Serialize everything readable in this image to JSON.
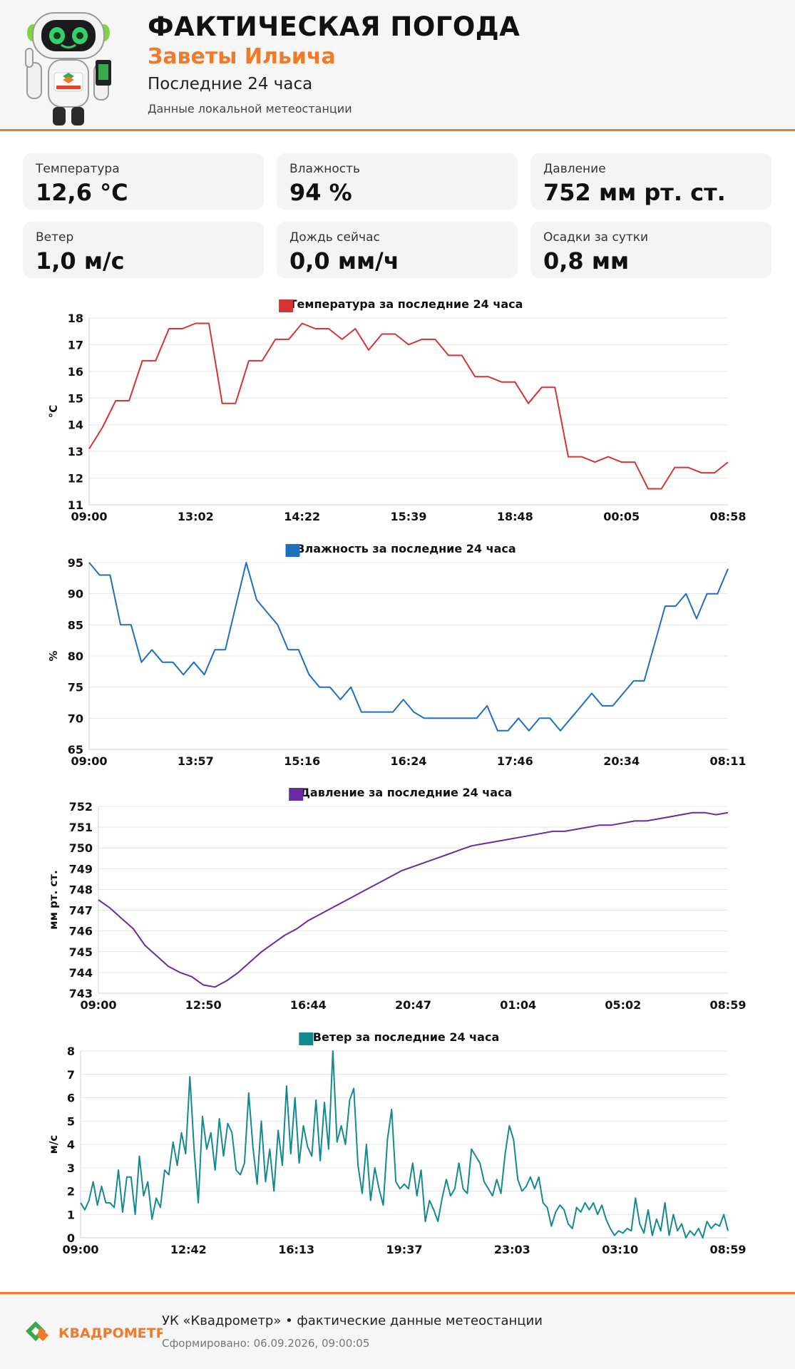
{
  "header": {
    "title": "ФАКТИЧЕСКАЯ ПОГОДА",
    "location": "Заветы Ильича",
    "period": "Последние 24 часа",
    "source": "Данные локальной метеостанции",
    "accent_color": "#f07a2a"
  },
  "cards": [
    {
      "label": "Температура",
      "value": "12,6 °C"
    },
    {
      "label": "Влажность",
      "value": "94 %"
    },
    {
      "label": "Давление",
      "value": "752 мм рт. ст."
    },
    {
      "label": "Ветер",
      "value": "1,0 м/с"
    },
    {
      "label": "Дождь сейчас",
      "value": "0,0 мм/ч"
    },
    {
      "label": "Осадки за сутки",
      "value": "0,8 мм"
    }
  ],
  "chart_data": [
    {
      "type": "line",
      "title": "Температура за последние 24 часа",
      "ylabel": "°C",
      "color": "#d63333",
      "ylim": [
        11,
        18
      ],
      "yticks": [
        11,
        12,
        13,
        14,
        15,
        16,
        17,
        18
      ],
      "xtick_labels": [
        "09:00",
        "13:02",
        "14:22",
        "15:39",
        "18:48",
        "00:05",
        "08:58"
      ],
      "grid": true,
      "legend": "top-center",
      "values": [
        13.1,
        13.9,
        14.9,
        14.9,
        16.4,
        16.4,
        17.6,
        17.6,
        17.8,
        17.8,
        14.8,
        14.8,
        16.4,
        16.4,
        17.2,
        17.2,
        17.8,
        17.6,
        17.6,
        17.2,
        17.6,
        16.8,
        17.4,
        17.4,
        17.0,
        17.2,
        17.2,
        16.6,
        16.6,
        15.8,
        15.8,
        15.6,
        15.6,
        14.8,
        15.4,
        15.4,
        12.8,
        12.8,
        12.6,
        12.8,
        12.6,
        12.6,
        11.6,
        11.6,
        12.4,
        12.4,
        12.2,
        12.2,
        12.6
      ]
    },
    {
      "type": "line",
      "title": "Влажность за последние 24 часа",
      "ylabel": "%",
      "color": "#1f6fbf",
      "ylim": [
        65,
        95
      ],
      "yticks": [
        65,
        70,
        75,
        80,
        85,
        90,
        95
      ],
      "xtick_labels": [
        "09:00",
        "13:57",
        "15:16",
        "16:24",
        "17:46",
        "20:34",
        "08:11"
      ],
      "grid": true,
      "legend": "top-center",
      "values": [
        95,
        93,
        93,
        85,
        85,
        79,
        81,
        79,
        79,
        77,
        79,
        77,
        81,
        81,
        88,
        95,
        89,
        87,
        85,
        81,
        81,
        77,
        75,
        75,
        73,
        75,
        71,
        71,
        71,
        71,
        73,
        71,
        70,
        70,
        70,
        70,
        70,
        70,
        72,
        68,
        68,
        70,
        68,
        70,
        70,
        68,
        70,
        72,
        74,
        72,
        72,
        74,
        76,
        76,
        82,
        88,
        88,
        90,
        86,
        90,
        90,
        94
      ]
    },
    {
      "type": "line",
      "title": "Давление за последние 24 часа",
      "ylabel": "мм рт. ст.",
      "color": "#6a2aa0",
      "ylim": [
        743,
        752
      ],
      "yticks": [
        743,
        744,
        745,
        746,
        747,
        748,
        749,
        750,
        751,
        752
      ],
      "xtick_labels": [
        "09:00",
        "12:50",
        "16:44",
        "20:47",
        "01:04",
        "05:02",
        "08:59"
      ],
      "grid": true,
      "legend": "top-center",
      "values": [
        747.5,
        747.1,
        746.6,
        746.1,
        745.3,
        744.8,
        744.3,
        744.0,
        743.8,
        743.4,
        743.3,
        743.6,
        744.0,
        744.5,
        745.0,
        745.4,
        745.8,
        746.1,
        746.5,
        746.8,
        747.1,
        747.4,
        747.7,
        748.0,
        748.3,
        748.6,
        748.9,
        749.1,
        749.3,
        749.5,
        749.7,
        749.9,
        750.1,
        750.2,
        750.3,
        750.4,
        750.5,
        750.6,
        750.7,
        750.8,
        750.8,
        750.9,
        751.0,
        751.1,
        751.1,
        751.2,
        751.3,
        751.3,
        751.4,
        751.5,
        751.6,
        751.7,
        751.7,
        751.6,
        751.7
      ]
    },
    {
      "type": "line",
      "title": "Ветер за последние 24 часа",
      "ylabel": "м/с",
      "color": "#138a8f",
      "ylim": [
        0,
        8
      ],
      "yticks": [
        0,
        1,
        2,
        3,
        4,
        5,
        6,
        7,
        8
      ],
      "xtick_labels": [
        "09:00",
        "12:42",
        "16:13",
        "19:37",
        "23:03",
        "03:10",
        "08:59"
      ],
      "grid": true,
      "legend": "top-center",
      "values": [
        1.5,
        1.2,
        1.6,
        2.4,
        1.4,
        2.2,
        1.5,
        1.5,
        1.3,
        2.9,
        1.1,
        2.6,
        2.6,
        1.0,
        3.5,
        1.8,
        2.4,
        0.8,
        1.7,
        1.3,
        2.9,
        2.7,
        4.1,
        3.1,
        4.5,
        3.6,
        6.9,
        3.8,
        1.5,
        5.2,
        3.8,
        4.5,
        2.9,
        5.1,
        3.5,
        4.9,
        4.5,
        2.9,
        2.7,
        3.2,
        6.2,
        3.9,
        2.3,
        5.0,
        2.4,
        3.8,
        2.0,
        4.6,
        3.1,
        6.5,
        3.6,
        6.0,
        3.2,
        4.8,
        3.9,
        3.5,
        5.9,
        3.3,
        5.8,
        3.8,
        8.0,
        4.1,
        4.8,
        4.0,
        5.9,
        6.4,
        3.1,
        1.9,
        4.0,
        1.6,
        3.0,
        2.1,
        1.4,
        4.2,
        5.5,
        2.4,
        2.1,
        2.3,
        2.1,
        3.2,
        1.8,
        2.9,
        0.7,
        1.6,
        1.2,
        0.7,
        1.7,
        2.5,
        1.8,
        2.1,
        3.2,
        2.1,
        1.9,
        3.8,
        3.5,
        3.2,
        2.4,
        2.1,
        1.8,
        2.5,
        1.9,
        3.6,
        4.8,
        4.2,
        2.5,
        2.0,
        2.2,
        2.6,
        2.1,
        2.6,
        1.5,
        1.3,
        0.5,
        1.1,
        1.4,
        1.2,
        0.6,
        0.4,
        1.3,
        1.1,
        1.5,
        1.2,
        1.5,
        1.0,
        1.4,
        0.8,
        0.4,
        0.1,
        0.3,
        0.2,
        0.4,
        0.3,
        1.7,
        0.6,
        0.2,
        1.2,
        0.1,
        0.8,
        0.3,
        1.5,
        0.1,
        1.0,
        0.3,
        0.6,
        0.0,
        0.3,
        0.1,
        0.4,
        0.0,
        0.7,
        0.4,
        0.6,
        0.5,
        1.0,
        0.3
      ]
    }
  ],
  "footer": {
    "logo_text": "КВАДРОМЕТР",
    "main": "УК «Квадрометр» • фактические данные метеостанции",
    "generated": "Сформировано: 06.09.2026, 09:00:05"
  }
}
